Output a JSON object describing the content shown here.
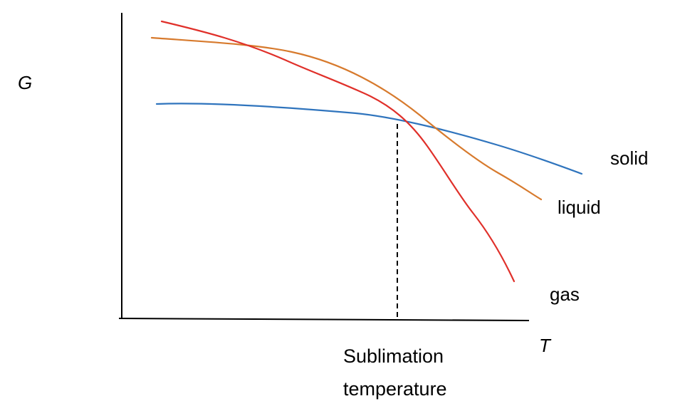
{
  "chart_data": {
    "type": "line",
    "title": "",
    "xlabel": "T",
    "ylabel": "G",
    "grid": false,
    "legend": "inline labels at right end of each curve",
    "series": [
      {
        "name": "solid",
        "color": "#2f74bd"
      },
      {
        "name": "liquid",
        "color": "#d77a2d"
      },
      {
        "name": "gas",
        "color": "#e0302a"
      }
    ],
    "annotations": [
      {
        "text": "Sublimation temperature",
        "line1": "Sublimation",
        "line2": "temperature",
        "style": "dashed vertical line at solid–gas intersection"
      }
    ],
    "axis_color": "#000000"
  }
}
